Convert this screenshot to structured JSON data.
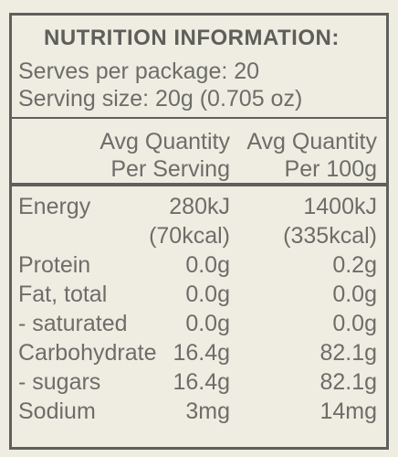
{
  "header": {
    "title": "NUTRITION INFORMATION:",
    "serves": "Serves per package: 20",
    "serving_size": "Serving size: 20g (0.705 oz)"
  },
  "table": {
    "columns": [
      [
        "Avg Quantity",
        "Per Serving"
      ],
      [
        "Avg Quantity",
        "Per 100g"
      ]
    ],
    "rows": [
      {
        "label": "Energy",
        "per_serving": [
          "280kJ",
          "(70kcal)"
        ],
        "per_100g": [
          "1400kJ",
          "(335kcal)"
        ]
      },
      {
        "label": "Protein",
        "per_serving": [
          "0.0g"
        ],
        "per_100g": [
          "0.2g"
        ]
      },
      {
        "label": "Fat, total",
        "per_serving": [
          "0.0g"
        ],
        "per_100g": [
          "0.0g"
        ]
      },
      {
        "label": "- saturated",
        "per_serving": [
          "0.0g"
        ],
        "per_100g": [
          "0.0g"
        ]
      },
      {
        "label": "Carbohydrate",
        "per_serving": [
          "16.4g"
        ],
        "per_100g": [
          "82.1g"
        ]
      },
      {
        "label": "- sugars",
        "per_serving": [
          "16.4g"
        ],
        "per_100g": [
          "82.1g"
        ]
      },
      {
        "label": "Sodium",
        "per_serving": [
          "3mg"
        ],
        "per_100g": [
          "14mg"
        ]
      }
    ]
  }
}
